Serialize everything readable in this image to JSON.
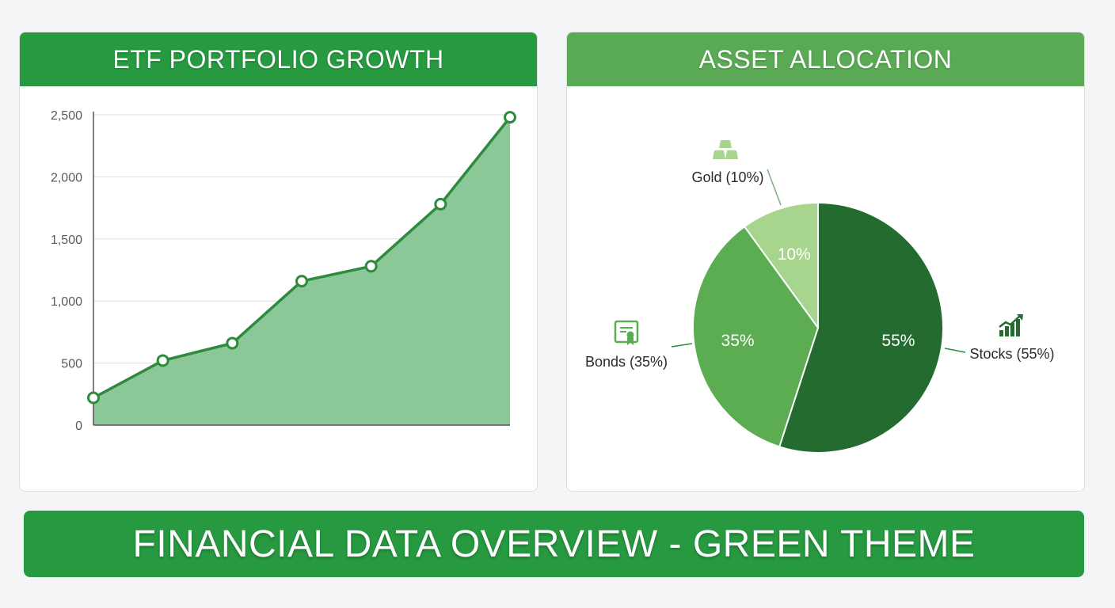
{
  "colors": {
    "header_green": "#279940",
    "header_light_green": "#5aaa55",
    "line": "#2e8b3e",
    "area": "#8cc797",
    "stocks": "#246b30",
    "bonds": "#5cad51",
    "gold": "#a8d58d"
  },
  "growth": {
    "title": "ETF PORTFOLIO GROWTH"
  },
  "allocation": {
    "title": "ASSET ALLOCATION"
  },
  "footer": {
    "title": "FINANCIAL DATA OVERVIEW - GREEN THEME"
  },
  "chart_data": [
    {
      "type": "area",
      "title": "ETF PORTFOLIO GROWTH",
      "x": [
        0,
        1,
        2,
        3,
        4,
        5,
        6
      ],
      "values": [
        220,
        520,
        660,
        1160,
        1280,
        1780,
        2480
      ],
      "ylim": [
        0,
        2500
      ],
      "yticks": [
        0,
        500,
        1000,
        1500,
        2000,
        2500
      ],
      "ytick_labels": [
        "0",
        "500",
        "1,000",
        "1,500",
        "2,000",
        "2,500"
      ],
      "grid": true
    },
    {
      "type": "pie",
      "title": "ASSET ALLOCATION",
      "slices": [
        {
          "label": "Stocks (55%)",
          "value": 55,
          "pct_label": "55%",
          "color": "#246b30",
          "icon": "growth-chart-icon"
        },
        {
          "label": "Bonds (35%)",
          "value": 35,
          "pct_label": "35%",
          "color": "#5cad51",
          "icon": "certificate-icon"
        },
        {
          "label": "Gold (10%)",
          "value": 10,
          "pct_label": "10%",
          "color": "#a8d58d",
          "icon": "gold-bars-icon"
        }
      ]
    }
  ]
}
